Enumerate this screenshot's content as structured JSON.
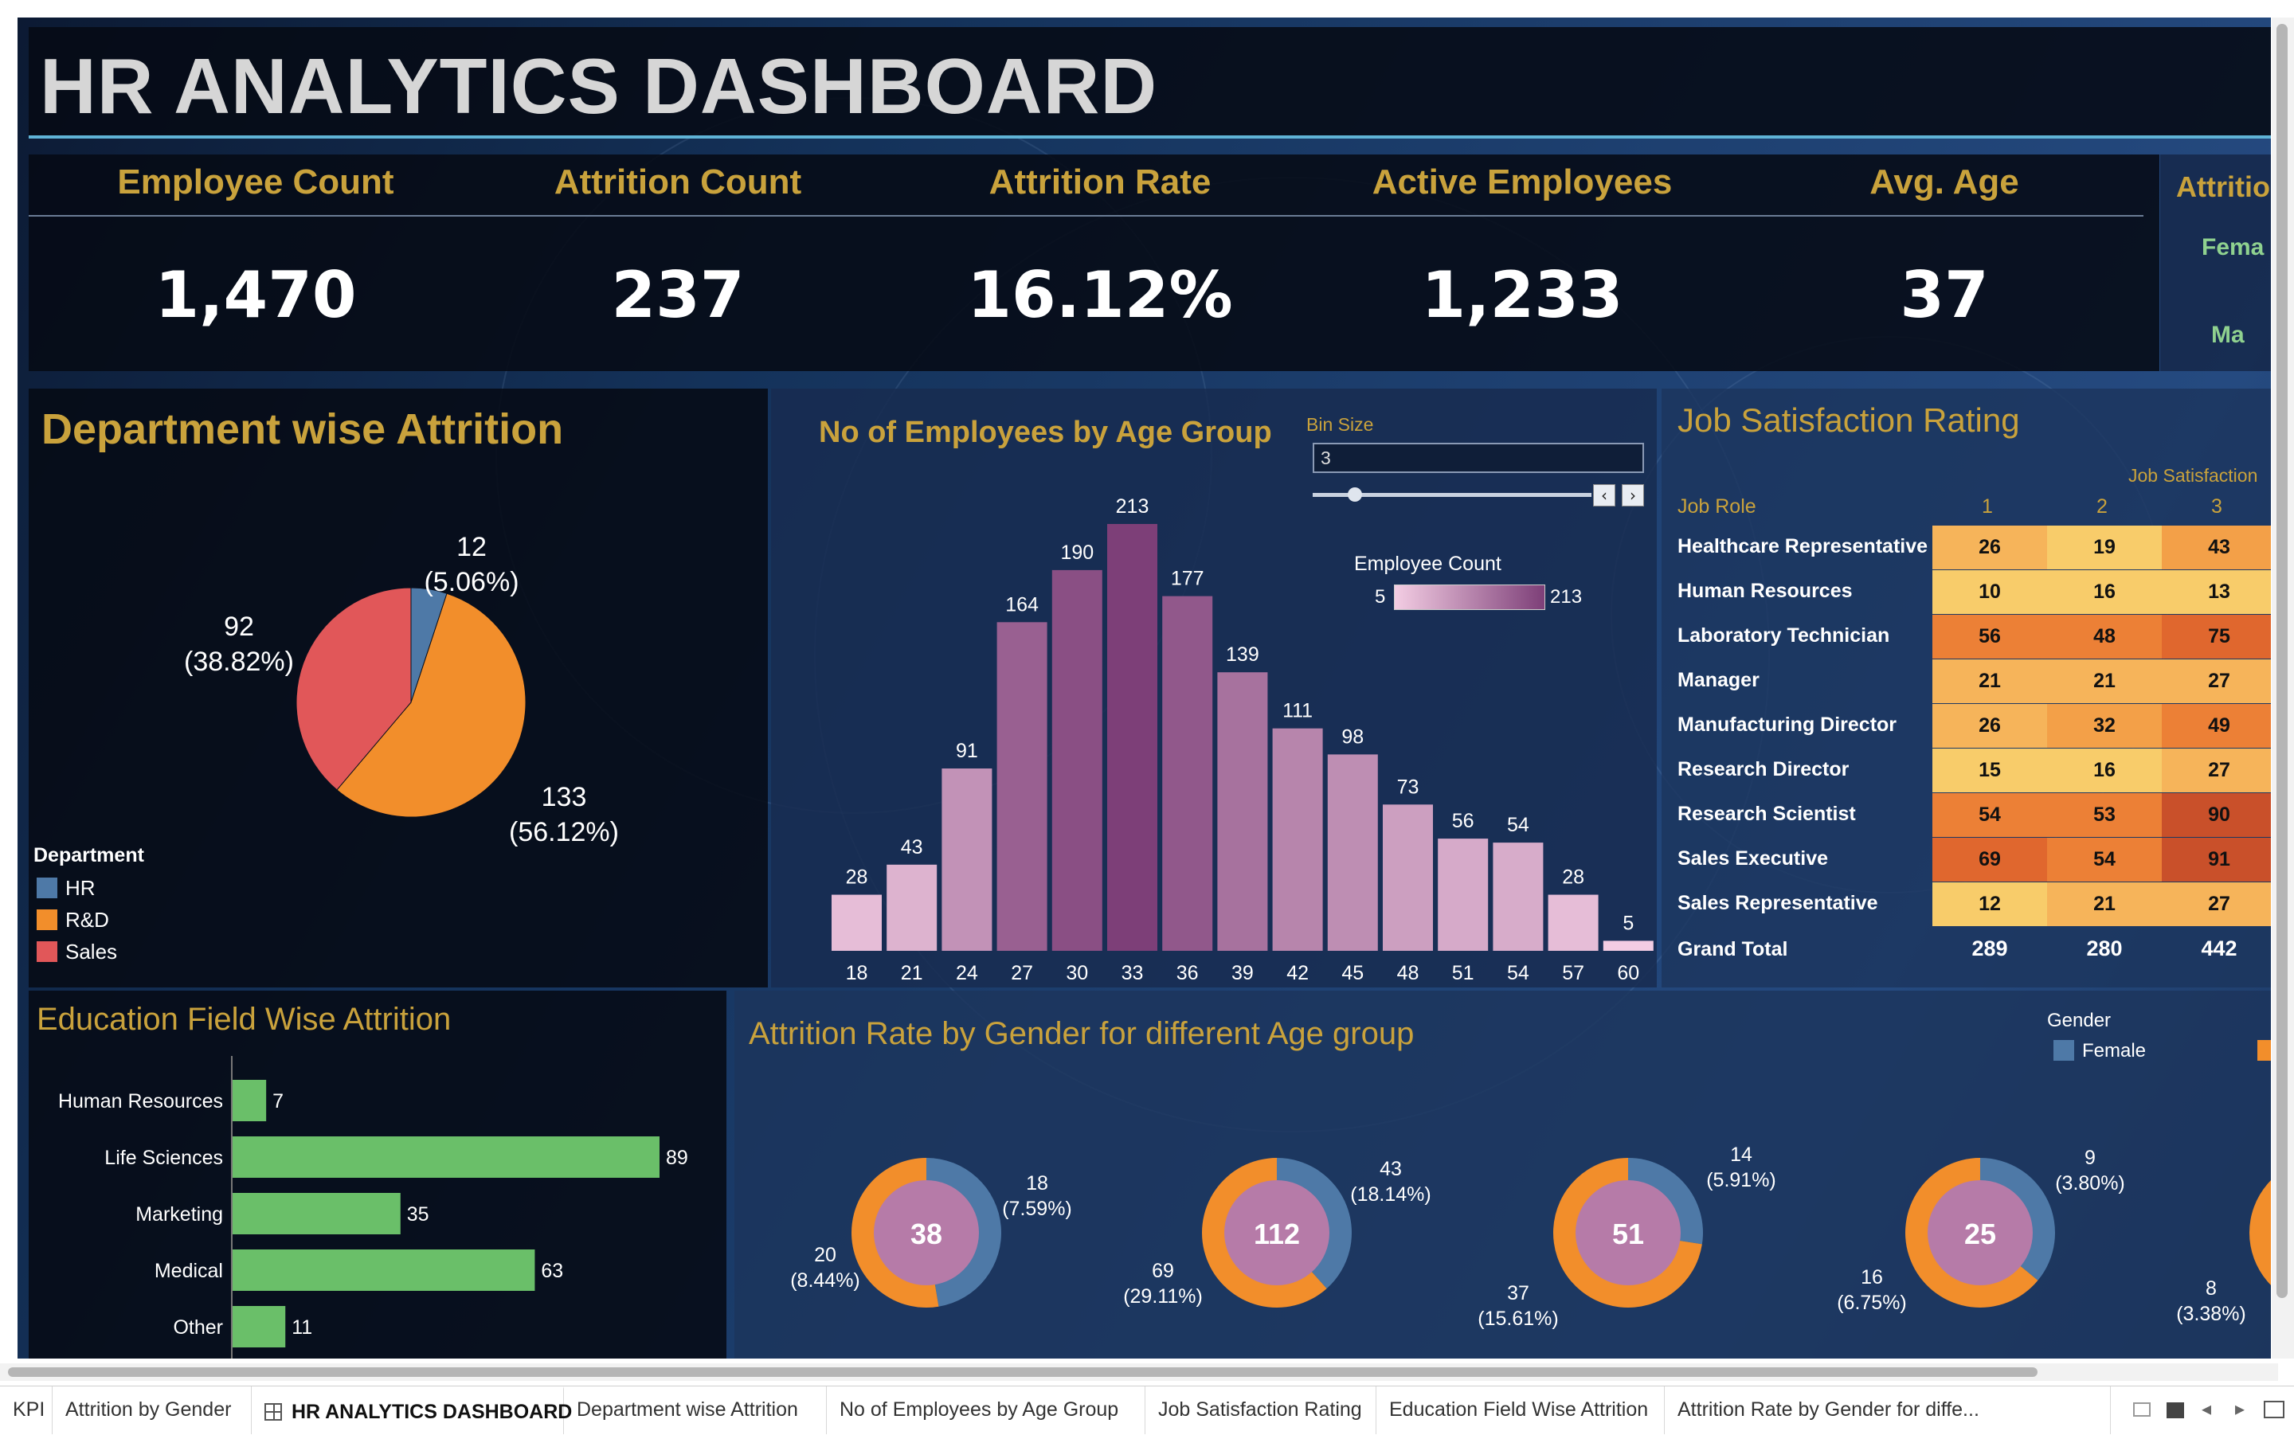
{
  "header": {
    "title": "HR ANALYTICS DASHBOARD"
  },
  "kpis": [
    {
      "title": "Employee Count",
      "value": "1,470"
    },
    {
      "title": "Attrition Count",
      "value": "237"
    },
    {
      "title": "Attrition Rate",
      "value": "16.12%"
    },
    {
      "title": "Active Employees",
      "value": "1,233"
    },
    {
      "title": "Avg. Age",
      "value": "37"
    }
  ],
  "gender_kpi": {
    "title": "Attritio",
    "female": "Fema",
    "male": "Ma"
  },
  "department": {
    "title": "Department wise Attrition",
    "legend_title": "Department",
    "slices": [
      {
        "name": "HR",
        "value": 12,
        "label": "12",
        "pct": "(5.06%)",
        "color": "#4e79a7"
      },
      {
        "name": "R&D",
        "value": 133,
        "label": "133",
        "pct": "(56.12%)",
        "color": "#f28e2b"
      },
      {
        "name": "Sales",
        "value": 92,
        "label": "92",
        "pct": "(38.82%)",
        "color": "#e15759"
      }
    ]
  },
  "age_group": {
    "title": "No of Employees by Age Group",
    "bin_size_label": "Bin Size",
    "bin_size_value": "3",
    "legend_title": "Employee Count",
    "legend_min": "5",
    "legend_max": "213"
  },
  "job_satisfaction": {
    "title": "Job Satisfaction Rating",
    "col_header": "Job Satisfaction",
    "row_header": "Job Role",
    "columns": [
      "1",
      "2",
      "3"
    ],
    "rows": [
      {
        "role": "Healthcare Representative",
        "values": [
          "26",
          "19",
          "43"
        ]
      },
      {
        "role": "Human Resources",
        "values": [
          "10",
          "16",
          "13"
        ]
      },
      {
        "role": "Laboratory Technician",
        "values": [
          "56",
          "48",
          "75"
        ]
      },
      {
        "role": "Manager",
        "values": [
          "21",
          "21",
          "27"
        ]
      },
      {
        "role": "Manufacturing Director",
        "values": [
          "26",
          "32",
          "49"
        ]
      },
      {
        "role": "Research Director",
        "values": [
          "15",
          "16",
          "27"
        ]
      },
      {
        "role": "Research Scientist",
        "values": [
          "54",
          "53",
          "90"
        ]
      },
      {
        "role": "Sales Executive",
        "values": [
          "69",
          "54",
          "91"
        ]
      },
      {
        "role": "Sales Representative",
        "values": [
          "12",
          "21",
          "27"
        ]
      }
    ],
    "grand_total_label": "Grand Total",
    "grand_totals": [
      "289",
      "280",
      "442"
    ]
  },
  "education": {
    "title": "Education Field Wise Attrition"
  },
  "gender_age": {
    "title": "Attrition Rate by Gender for different Age group",
    "legend_title": "Gender",
    "legend_female": "Female",
    "female_color": "#4e79a7",
    "male_color": "#f28e2b",
    "donuts": [
      {
        "total": "38",
        "female": 18,
        "male": 20,
        "female_label": "18",
        "female_pct": "(7.59%)",
        "male_label": "20",
        "male_pct": "(8.44%)"
      },
      {
        "total": "112",
        "female": 43,
        "male": 69,
        "female_label": "43",
        "female_pct": "(18.14%)",
        "male_label": "69",
        "male_pct": "(29.11%)"
      },
      {
        "total": "51",
        "female": 14,
        "male": 37,
        "female_label": "14",
        "female_pct": "(5.91%)",
        "male_label": "37",
        "male_pct": "(15.61%)"
      },
      {
        "total": "25",
        "female": 9,
        "male": 16,
        "female_label": "9",
        "female_pct": "(3.80%)",
        "male_label": "16",
        "male_pct": "(6.75%)"
      }
    ],
    "partial_male_label": "8",
    "partial_male_pct": "(3.38%)"
  },
  "tabs": [
    {
      "label": "KPI"
    },
    {
      "label": "Attrition by Gender"
    },
    {
      "label": "HR ANALYTICS DASHBOARD"
    },
    {
      "label": "Department wise Attrition"
    },
    {
      "label": "No of Employees by Age Group"
    },
    {
      "label": "Job Satisfaction Rating"
    },
    {
      "label": "Education Field Wise Attrition"
    },
    {
      "label": "Attrition Rate by Gender for diffe..."
    }
  ],
  "chart_data": [
    {
      "type": "pie",
      "title": "Department wise Attrition",
      "categories": [
        "HR",
        "R&D",
        "Sales"
      ],
      "values": [
        12,
        133,
        92
      ]
    },
    {
      "type": "bar",
      "title": "No of Employees by Age Group",
      "categories": [
        "18",
        "21",
        "24",
        "27",
        "30",
        "33",
        "36",
        "39",
        "42",
        "45",
        "48",
        "51",
        "54",
        "57",
        "60"
      ],
      "values": [
        28,
        43,
        91,
        164,
        190,
        213,
        177,
        139,
        111,
        98,
        73,
        56,
        54,
        28,
        5
      ]
    },
    {
      "type": "bar",
      "title": "Education Field Wise Attrition",
      "categories": [
        "Human Resources",
        "Life Sciences",
        "Marketing",
        "Medical",
        "Other"
      ],
      "values": [
        7,
        89,
        35,
        63,
        11
      ]
    }
  ]
}
